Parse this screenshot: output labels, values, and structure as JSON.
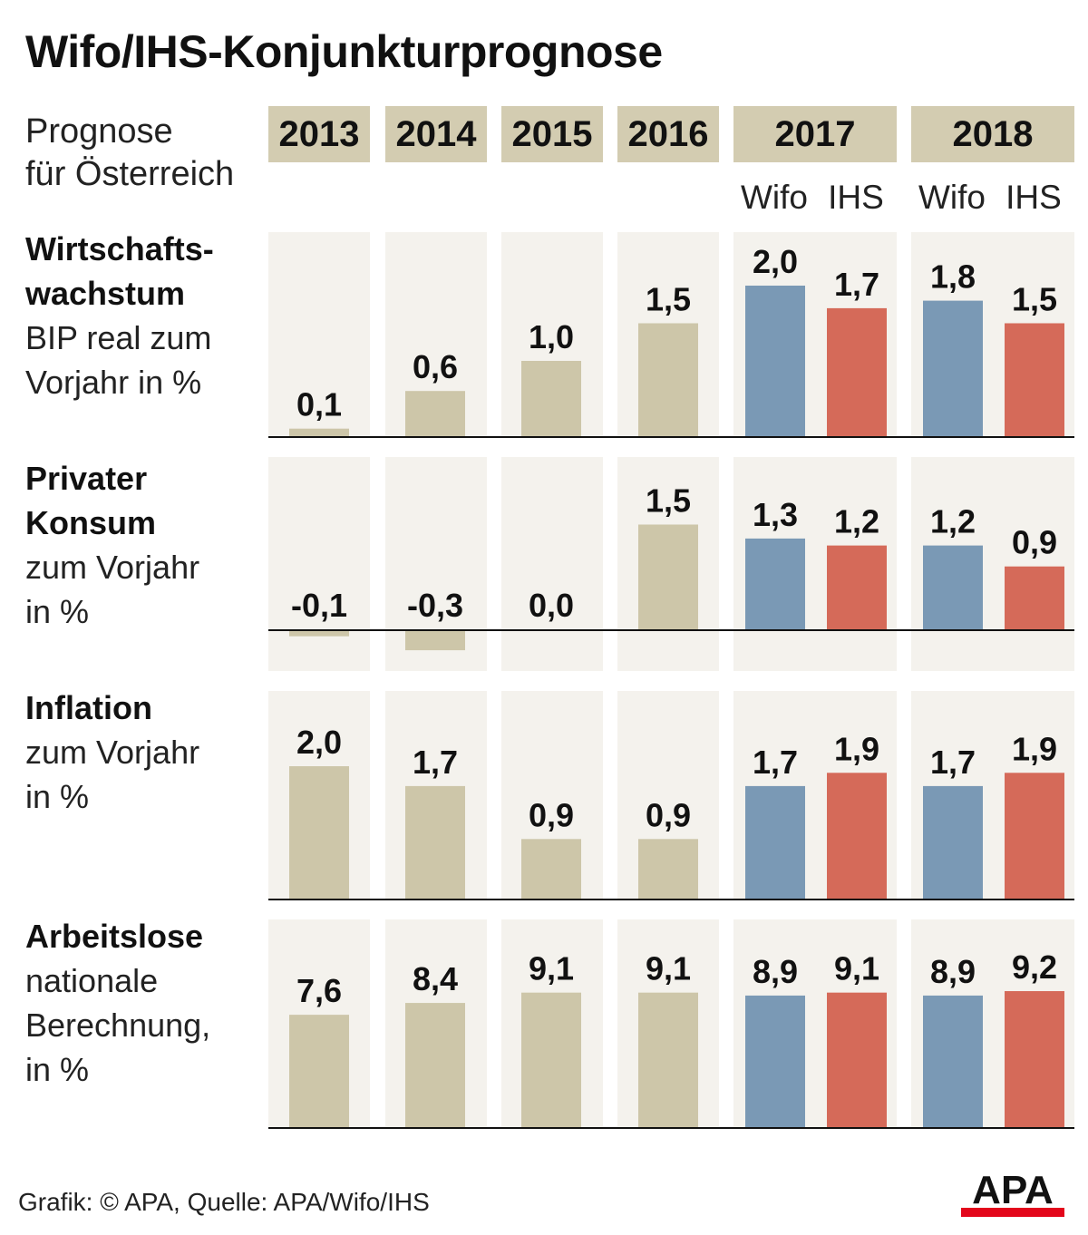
{
  "title": "Wifo/IHS-Konjunkturprognose",
  "subtitle_line1": "Prognose",
  "subtitle_line2": "für Österreich",
  "years": [
    "2013",
    "2014",
    "2015",
    "2016",
    "2017",
    "2018"
  ],
  "source_labels": {
    "wifo": "Wifo",
    "ihs": "IHS"
  },
  "colors": {
    "history": "#cdc6a9",
    "wifo": "#7a99b5",
    "ihs": "#d56a59",
    "panel": "#f4f2ed",
    "year_header": "#d3ccb1"
  },
  "rows": [
    {
      "bold1": "Wirtschafts-",
      "bold2": "wachstum",
      "line3": "BIP real zum",
      "line4": "Vorjahr in %"
    },
    {
      "bold1": "Privater",
      "bold2": "Konsum",
      "line3": "zum Vorjahr",
      "line4": "in %"
    },
    {
      "bold1": "Inflation",
      "bold2": "",
      "line3": "zum Vorjahr",
      "line4": "in %"
    },
    {
      "bold1": "Arbeitslose",
      "bold2": "nationale",
      "line3": "Berechnung,",
      "line4": "in %"
    }
  ],
  "chart_data": [
    {
      "type": "bar",
      "title": "Wirtschaftswachstum – BIP real zum Vorjahr in %",
      "categories": [
        "2013",
        "2014",
        "2015",
        "2016",
        "2017 Wifo",
        "2017 IHS",
        "2018 Wifo",
        "2018 IHS"
      ],
      "values": [
        0.1,
        0.6,
        1.0,
        1.5,
        2.0,
        1.7,
        1.8,
        1.5
      ],
      "labels": [
        "0,1",
        "0,6",
        "1,0",
        "1,5",
        "2,0",
        "1,7",
        "1,8",
        "1,5"
      ]
    },
    {
      "type": "bar",
      "title": "Privater Konsum – zum Vorjahr in %",
      "categories": [
        "2013",
        "2014",
        "2015",
        "2016",
        "2017 Wifo",
        "2017 IHS",
        "2018 Wifo",
        "2018 IHS"
      ],
      "values": [
        -0.1,
        -0.3,
        0.0,
        1.5,
        1.3,
        1.2,
        1.2,
        0.9
      ],
      "labels": [
        "-0,1",
        "-0,3",
        "0,0",
        "1,5",
        "1,3",
        "1,2",
        "1,2",
        "0,9"
      ]
    },
    {
      "type": "bar",
      "title": "Inflation – zum Vorjahr in %",
      "categories": [
        "2013",
        "2014",
        "2015",
        "2016",
        "2017 Wifo",
        "2017 IHS",
        "2018 Wifo",
        "2018 IHS"
      ],
      "values": [
        2.0,
        1.7,
        0.9,
        0.9,
        1.7,
        1.9,
        1.7,
        1.9
      ],
      "labels": [
        "2,0",
        "1,7",
        "0,9",
        "0,9",
        "1,7",
        "1,9",
        "1,7",
        "1,9"
      ]
    },
    {
      "type": "bar",
      "title": "Arbeitslose – nationale Berechnung, in %",
      "categories": [
        "2013",
        "2014",
        "2015",
        "2016",
        "2017 Wifo",
        "2017 IHS",
        "2018 Wifo",
        "2018 IHS"
      ],
      "values": [
        7.6,
        8.4,
        9.1,
        9.1,
        8.9,
        9.1,
        8.9,
        9.2
      ],
      "labels": [
        "7,6",
        "8,4",
        "9,1",
        "9,1",
        "8,9",
        "9,1",
        "8,9",
        "9,2"
      ]
    }
  ],
  "footer": "Grafik: © APA, Quelle: APA/Wifo/IHS",
  "logo_text": "APA"
}
